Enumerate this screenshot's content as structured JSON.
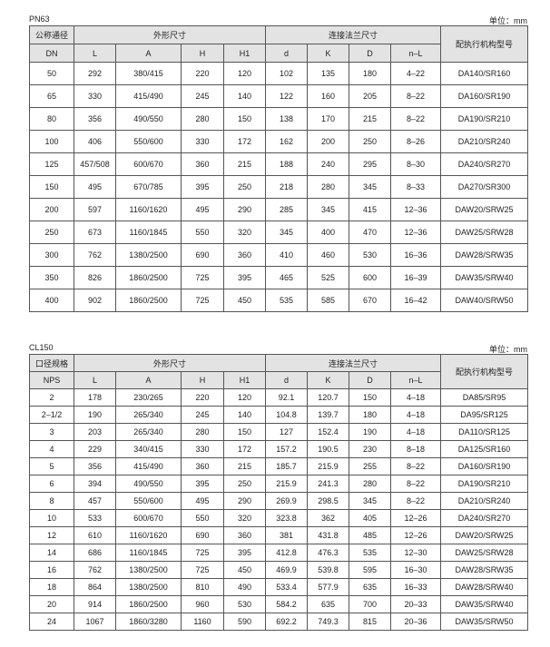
{
  "unit_label": "单位：mm",
  "columns": {
    "outline": "外形尺寸",
    "flange": "连接法兰尺寸",
    "actuator": "配执行机构型号",
    "sub": [
      "L",
      "A",
      "H",
      "H1",
      "d",
      "K",
      "D",
      "n–L"
    ]
  },
  "tables": [
    {
      "title": "PN63",
      "size_header": "公称通径",
      "size_sub": "DN",
      "rows": [
        [
          "50",
          "292",
          "380/415",
          "220",
          "120",
          "102",
          "135",
          "180",
          "4–22",
          "DA140/SR160"
        ],
        [
          "65",
          "330",
          "415/490",
          "245",
          "140",
          "122",
          "160",
          "205",
          "8–22",
          "DA160/SR190"
        ],
        [
          "80",
          "356",
          "490/550",
          "280",
          "150",
          "138",
          "170",
          "215",
          "8–22",
          "DA190/SR210"
        ],
        [
          "100",
          "406",
          "550/600",
          "330",
          "172",
          "162",
          "200",
          "250",
          "8–26",
          "DA210/SR240"
        ],
        [
          "125",
          "457/508",
          "600/670",
          "360",
          "215",
          "188",
          "240",
          "295",
          "8–30",
          "DA240/SR270"
        ],
        [
          "150",
          "495",
          "670/785",
          "395",
          "250",
          "218",
          "280",
          "345",
          "8–33",
          "DA270/SR300"
        ],
        [
          "200",
          "597",
          "1160/1620",
          "495",
          "290",
          "285",
          "345",
          "415",
          "12–36",
          "DAW20/SRW25"
        ],
        [
          "250",
          "673",
          "1160/1845",
          "550",
          "320",
          "345",
          "400",
          "470",
          "12–36",
          "DAW25/SRW28"
        ],
        [
          "300",
          "762",
          "1380/2500",
          "690",
          "360",
          "410",
          "460",
          "530",
          "16–36",
          "DAW28/SRW35"
        ],
        [
          "350",
          "826",
          "1860/2500",
          "725",
          "395",
          "465",
          "525",
          "600",
          "16–39",
          "DAW35/SRW40"
        ],
        [
          "400",
          "902",
          "1860/2500",
          "725",
          "450",
          "535",
          "585",
          "670",
          "16–42",
          "DAW40/SRW50"
        ]
      ]
    },
    {
      "title": "CL150",
      "size_header": "口径规格",
      "size_sub": "NPS",
      "rows": [
        [
          "2",
          "178",
          "230/265",
          "220",
          "120",
          "92.1",
          "120.7",
          "150",
          "4–18",
          "DA85/SR95"
        ],
        [
          "2–1/2",
          "190",
          "265/340",
          "245",
          "140",
          "104.8",
          "139.7",
          "180",
          "4–18",
          "DA95/SR125"
        ],
        [
          "3",
          "203",
          "265/340",
          "280",
          "150",
          "127",
          "152.4",
          "190",
          "4–18",
          "DA110/SR125"
        ],
        [
          "4",
          "229",
          "340/415",
          "330",
          "172",
          "157.2",
          "190.5",
          "230",
          "8–18",
          "DA125/SR160"
        ],
        [
          "5",
          "356",
          "415/490",
          "360",
          "215",
          "185.7",
          "215.9",
          "255",
          "8–22",
          "DA160/SR190"
        ],
        [
          "6",
          "394",
          "490/550",
          "395",
          "250",
          "215.9",
          "241.3",
          "280",
          "8–22",
          "DA190/SR210"
        ],
        [
          "8",
          "457",
          "550/600",
          "495",
          "290",
          "269.9",
          "298.5",
          "345",
          "8–22",
          "DA210/SR240"
        ],
        [
          "10",
          "533",
          "600/670",
          "550",
          "320",
          "323.8",
          "362",
          "405",
          "12–26",
          "DA240/SR270"
        ],
        [
          "12",
          "610",
          "1160/1620",
          "690",
          "360",
          "381",
          "431.8",
          "485",
          "12–26",
          "DAW20/SRW25"
        ],
        [
          "14",
          "686",
          "1160/1845",
          "725",
          "395",
          "412.8",
          "476.3",
          "535",
          "12–30",
          "DAW25/SRW28"
        ],
        [
          "16",
          "762",
          "1380/2500",
          "725",
          "450",
          "469.9",
          "539.8",
          "595",
          "16–30",
          "DAW28/SRW35"
        ],
        [
          "18",
          "864",
          "1380/2500",
          "810",
          "490",
          "533.4",
          "577.9",
          "635",
          "16–33",
          "DAW28/SRW40"
        ],
        [
          "20",
          "914",
          "1860/2500",
          "960",
          "530",
          "584.2",
          "635",
          "700",
          "20–33",
          "DAW35/SRW40"
        ],
        [
          "24",
          "1067",
          "1860/3280",
          "1160",
          "590",
          "692.2",
          "749.3",
          "815",
          "20–36",
          "DAW35/SRW50"
        ]
      ]
    }
  ]
}
